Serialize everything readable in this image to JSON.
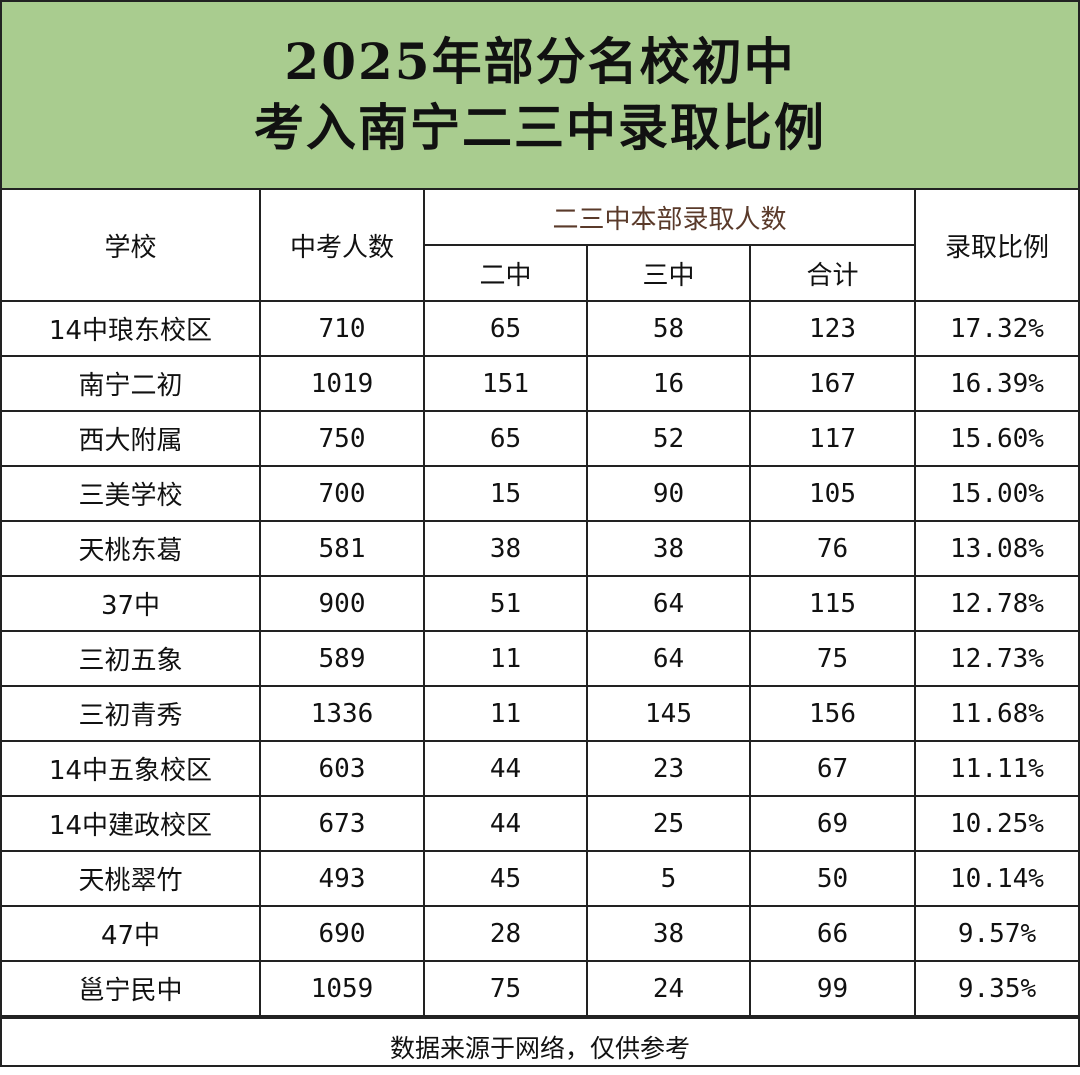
{
  "title": {
    "line1": "2025年部分名校初中",
    "line2": "考入南宁二三中录取比例"
  },
  "table": {
    "headers": {
      "school": "学校",
      "exam_count": "中考人数",
      "group": "二三中本部录取人数",
      "erzhong": "二中",
      "sanzhong": "三中",
      "total": "合计",
      "ratio": "录取比例"
    },
    "rows": [
      {
        "school": "14中琅东校区",
        "exam_count": "710",
        "erzhong": "65",
        "sanzhong": "58",
        "total": "123",
        "ratio": "17.32%"
      },
      {
        "school": "南宁二初",
        "exam_count": "1019",
        "erzhong": "151",
        "sanzhong": "16",
        "total": "167",
        "ratio": "16.39%"
      },
      {
        "school": "西大附属",
        "exam_count": "750",
        "erzhong": "65",
        "sanzhong": "52",
        "total": "117",
        "ratio": "15.60%"
      },
      {
        "school": "三美学校",
        "exam_count": "700",
        "erzhong": "15",
        "sanzhong": "90",
        "total": "105",
        "ratio": "15.00%"
      },
      {
        "school": "天桃东葛",
        "exam_count": "581",
        "erzhong": "38",
        "sanzhong": "38",
        "total": "76",
        "ratio": "13.08%"
      },
      {
        "school": "37中",
        "exam_count": "900",
        "erzhong": "51",
        "sanzhong": "64",
        "total": "115",
        "ratio": "12.78%"
      },
      {
        "school": "三初五象",
        "exam_count": "589",
        "erzhong": "11",
        "sanzhong": "64",
        "total": "75",
        "ratio": "12.73%"
      },
      {
        "school": "三初青秀",
        "exam_count": "1336",
        "erzhong": "11",
        "sanzhong": "145",
        "total": "156",
        "ratio": "11.68%"
      },
      {
        "school": "14中五象校区",
        "exam_count": "603",
        "erzhong": "44",
        "sanzhong": "23",
        "total": "67",
        "ratio": "11.11%"
      },
      {
        "school": "14中建政校区",
        "exam_count": "673",
        "erzhong": "44",
        "sanzhong": "25",
        "total": "69",
        "ratio": "10.25%"
      },
      {
        "school": "天桃翠竹",
        "exam_count": "493",
        "erzhong": "45",
        "sanzhong": "5",
        "total": "50",
        "ratio": "10.14%"
      },
      {
        "school": "47中",
        "exam_count": "690",
        "erzhong": "28",
        "sanzhong": "38",
        "total": "66",
        "ratio": "9.57%"
      },
      {
        "school": "邕宁民中",
        "exam_count": "1059",
        "erzhong": "75",
        "sanzhong": "24",
        "total": "99",
        "ratio": "9.35%"
      }
    ]
  },
  "footer": "数据来源于网络，仅供参考",
  "colors": {
    "title_background": "#a9cc8f",
    "border": "#222222",
    "group_header_text": "#5a3a2a"
  }
}
